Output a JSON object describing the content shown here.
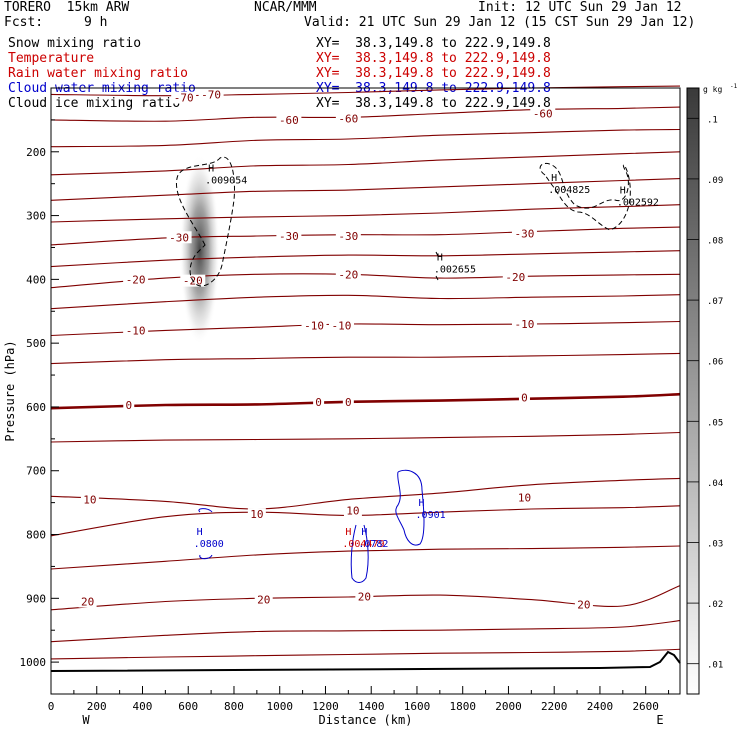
{
  "header": {
    "model": "TORERO  15km ARW",
    "center": "NCAR/MMM",
    "init": "Init: 12 UTC Sun 29 Jan 12",
    "fcst_label": "Fcst:",
    "fcst_value": "9 h",
    "valid": "Valid: 21 UTC Sun 29 Jan 12 (15 CST Sun 29 Jan 12)"
  },
  "legend_rows": [
    {
      "name": "Snow mixing ratio",
      "xy": "XY=  38.3,149.8 to 222.9,149.8",
      "color": "#000000"
    },
    {
      "name": "Temperature",
      "xy": "XY=  38.3,149.8 to 222.9,149.8",
      "color": "#cc0000"
    },
    {
      "name": "Rain water mixing ratio",
      "xy": "XY=  38.3,149.8 to 222.9,149.8",
      "color": "#cc0000"
    },
    {
      "name": "Cloud water mixing ratio",
      "xy": "XY=  38.3,149.8 to 222.9,149.8",
      "color": "#0000cc"
    },
    {
      "name": "Cloud ice mixing ratio",
      "xy": "XY=  38.3,149.8 to 222.9,149.8",
      "color": "#000000"
    }
  ],
  "colors": {
    "temperature": "#800000",
    "rain": "#cc0000",
    "cloud_water": "#0000cc",
    "cloud_ice": "#000000",
    "terrain": "#000000"
  },
  "chart_data": {
    "type": "cross-section",
    "xlabel": "Distance (km)",
    "ylabel": "Pressure (hPa)",
    "xlim": [
      0,
      2750
    ],
    "ylim": [
      1050,
      100
    ],
    "x_ticks": [
      0,
      200,
      400,
      600,
      800,
      1000,
      1200,
      1400,
      1600,
      1800,
      2000,
      2200,
      2400,
      2600
    ],
    "y_ticks": [
      200,
      300,
      400,
      500,
      600,
      700,
      800,
      900,
      1000
    ],
    "end_labels": {
      "left": "W",
      "right": "E"
    },
    "colorbar": {
      "unit": "g kg",
      "unit_sup": "-1",
      "ticks": [
        ".01",
        ".02",
        ".03",
        ".04",
        ".05",
        ".06",
        ".07",
        ".08",
        ".09",
        ".1"
      ],
      "range": [
        0.005,
        0.105
      ]
    },
    "isotherms": [
      {
        "value": -70,
        "x": [
          0,
          500,
          900,
          1300,
          1700,
          2100,
          2500,
          2750
        ],
        "p": [
          110,
          112,
          110,
          107,
          103,
          100,
          98,
          97
        ]
      },
      {
        "value": -60,
        "x": [
          0,
          500,
          900,
          1300,
          1700,
          2100,
          2500,
          2750
        ],
        "p": [
          150,
          152,
          146,
          146,
          140,
          134,
          132,
          130
        ]
      },
      {
        "value": null,
        "x": [
          0,
          500,
          900,
          1300,
          1700,
          2100,
          2500,
          2750
        ],
        "p": [
          192,
          190,
          182,
          180,
          174,
          170,
          166,
          165
        ]
      },
      {
        "value": null,
        "x": [
          0,
          500,
          900,
          1300,
          1700,
          2100,
          2500,
          2750
        ],
        "p": [
          236,
          230,
          222,
          220,
          213,
          208,
          203,
          200
        ]
      },
      {
        "value": null,
        "x": [
          0,
          500,
          900,
          1300,
          1700,
          2100,
          2500,
          2750
        ],
        "p": [
          276,
          268,
          262,
          260,
          255,
          250,
          245,
          242
        ]
      },
      {
        "value": null,
        "x": [
          0,
          500,
          900,
          1300,
          1700,
          2100,
          2500,
          2750
        ],
        "p": [
          310,
          305,
          302,
          300,
          296,
          290,
          286,
          283
        ]
      },
      {
        "value": -30,
        "x": [
          0,
          500,
          900,
          1300,
          1700,
          2100,
          2500,
          2750
        ],
        "p": [
          346,
          335,
          332,
          330,
          330,
          325,
          320,
          318
        ]
      },
      {
        "value": null,
        "x": [
          0,
          500,
          900,
          1300,
          1700,
          2100,
          2500,
          2750
        ],
        "p": [
          380,
          370,
          365,
          362,
          363,
          360,
          357,
          355
        ]
      },
      {
        "value": -20,
        "x": [
          0,
          500,
          900,
          1300,
          1700,
          2100,
          2500,
          2750
        ],
        "p": [
          413,
          398,
          392,
          392,
          398,
          395,
          393,
          392
        ]
      },
      {
        "value": null,
        "x": [
          0,
          500,
          900,
          1300,
          1700,
          2100,
          2500,
          2750
        ],
        "p": [
          446,
          435,
          428,
          425,
          430,
          428,
          426,
          424
        ]
      },
      {
        "value": -10,
        "x": [
          0,
          500,
          900,
          1300,
          1700,
          2100,
          2500,
          2750
        ],
        "p": [
          488,
          480,
          475,
          470,
          471,
          470,
          468,
          466
        ]
      },
      {
        "value": null,
        "x": [
          0,
          500,
          900,
          1300,
          1700,
          2100,
          2500,
          2750
        ],
        "p": [
          532,
          526,
          524,
          522,
          522,
          520,
          518,
          516
        ]
      },
      {
        "value": 0,
        "x": [
          0,
          500,
          900,
          1300,
          1700,
          2100,
          2500,
          2750
        ],
        "p": [
          602,
          597,
          596,
          592,
          590,
          587,
          584,
          580
        ]
      },
      {
        "value": null,
        "x": [
          0,
          500,
          900,
          1300,
          1700,
          2100,
          2500,
          2750
        ],
        "p": [
          655,
          652,
          651,
          650,
          648,
          646,
          643,
          640
        ]
      },
      {
        "value": 10,
        "x": [
          0,
          500,
          900,
          1300,
          1700,
          2100,
          2500,
          2750
        ],
        "p": [
          740,
          748,
          760,
          745,
          735,
          722,
          715,
          712
        ]
      },
      {
        "value": 10,
        "x": [
          0,
          500,
          900,
          1300,
          1700,
          2100,
          2500,
          2750
        ],
        "p": [
          802,
          772,
          765,
          770,
          765,
          760,
          758,
          755
        ]
      },
      {
        "value": null,
        "x": [
          0,
          500,
          900,
          1300,
          1700,
          2100,
          2500,
          2750
        ],
        "p": [
          854,
          842,
          832,
          826,
          823,
          822,
          820,
          818
        ]
      },
      {
        "value": 20,
        "x": [
          0,
          500,
          900,
          1300,
          1700,
          2100,
          2500,
          2750
        ],
        "p": [
          918,
          905,
          900,
          898,
          895,
          902,
          912,
          880
        ]
      },
      {
        "value": null,
        "x": [
          0,
          500,
          900,
          1300,
          1700,
          2100,
          2500,
          2750
        ],
        "p": [
          968,
          958,
          952,
          951,
          950,
          948,
          945,
          935
        ]
      },
      {
        "value": null,
        "x": [
          0,
          500,
          900,
          1300,
          1700,
          2100,
          2500,
          2750
        ],
        "p": [
          995,
          992,
          990,
          988,
          986,
          985,
          983,
          980
        ]
      }
    ],
    "isotherm_labels": [
      {
        "text": "-70",
        "x": 700,
        "p": 110
      },
      {
        "text": "-70",
        "x": 580,
        "p": 115
      },
      {
        "text": "-60",
        "x": 1040,
        "p": 150
      },
      {
        "text": "-60",
        "x": 1300,
        "p": 148
      },
      {
        "text": "-60",
        "x": 2150,
        "p": 140
      },
      {
        "text": "-30",
        "x": 560,
        "p": 334
      },
      {
        "text": "-30",
        "x": 1040,
        "p": 332
      },
      {
        "text": "-30",
        "x": 1300,
        "p": 332
      },
      {
        "text": "-30",
        "x": 2070,
        "p": 328
      },
      {
        "text": "-20",
        "x": 370,
        "p": 400
      },
      {
        "text": "-20",
        "x": 620,
        "p": 402
      },
      {
        "text": "-20",
        "x": 1300,
        "p": 392
      },
      {
        "text": "-20",
        "x": 2030,
        "p": 396
      },
      {
        "text": "-10",
        "x": 370,
        "p": 480
      },
      {
        "text": "-10",
        "x": 1150,
        "p": 472
      },
      {
        "text": "-10",
        "x": 1270,
        "p": 472
      },
      {
        "text": "-10",
        "x": 2070,
        "p": 470
      },
      {
        "text": "0",
        "x": 340,
        "p": 597
      },
      {
        "text": "0",
        "x": 1170,
        "p": 592
      },
      {
        "text": "0",
        "x": 1300,
        "p": 592
      },
      {
        "text": "0",
        "x": 2070,
        "p": 585
      },
      {
        "text": "10",
        "x": 170,
        "p": 745
      },
      {
        "text": "10",
        "x": 900,
        "p": 768
      },
      {
        "text": "10",
        "x": 1320,
        "p": 762
      },
      {
        "text": "10",
        "x": 2070,
        "p": 742
      },
      {
        "text": "20",
        "x": 160,
        "p": 905
      },
      {
        "text": "20",
        "x": 930,
        "p": 902
      },
      {
        "text": "20",
        "x": 1370,
        "p": 897
      },
      {
        "text": "20",
        "x": 2330,
        "p": 910
      }
    ],
    "maxima": [
      {
        "field": "snow",
        "label": "H",
        "value": ".009054",
        "x": 700,
        "p": 240
      },
      {
        "field": "snow",
        "label": "H",
        "value": ".004825",
        "x": 2200,
        "p": 255
      },
      {
        "field": "snow",
        "label": "H",
        "value": ".002592",
        "x": 2500,
        "p": 275
      },
      {
        "field": "snow",
        "label": "H",
        "value": ".002655",
        "x": 1700,
        "p": 380
      },
      {
        "field": "cloud_water",
        "label": "H",
        "value": ".0800",
        "x": 650,
        "p": 810
      },
      {
        "field": "rain",
        "label": "H",
        "value": ".004479",
        "x": 1300,
        "p": 810
      },
      {
        "field": "cloud_water",
        "label": "H",
        "value": ".0782",
        "x": 1370,
        "p": 810
      },
      {
        "field": "cloud_water",
        "label": "H",
        "value": ".0901",
        "x": 1620,
        "p": 765
      }
    ],
    "cloud_ice_peak": {
      "x": 650,
      "p": 385,
      "value": 0.09
    }
  }
}
